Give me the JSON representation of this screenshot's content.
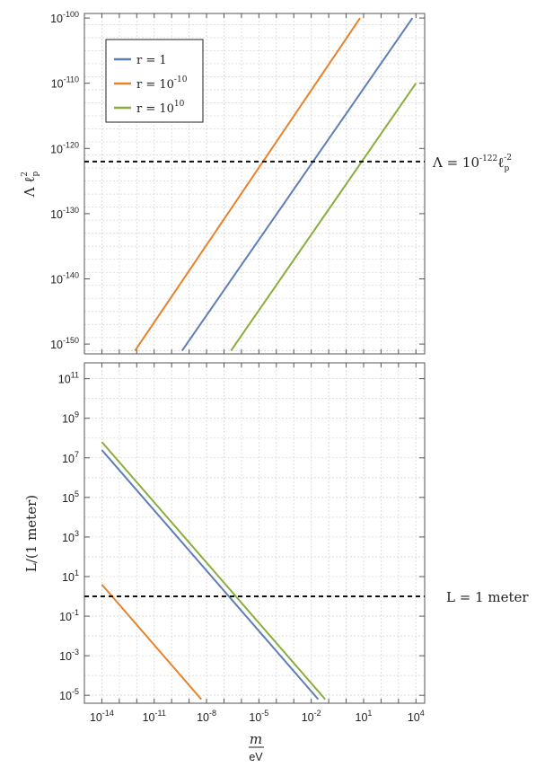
{
  "colors": {
    "r1": "#5e7fb5",
    "r_small": "#e8822a",
    "r_big": "#8aad3c",
    "ref_line": "#111111",
    "grid": "#d6d6d6",
    "frame": "#555555"
  },
  "chart_data": [
    {
      "id": "top",
      "type": "line",
      "ylabel": "Λ ℓ_p^2",
      "x_scale": "log10",
      "y_scale": "log10",
      "xlim_exp": [
        -15,
        4.5
      ],
      "ylim_exp": [
        -151.5,
        -99.3
      ],
      "y_tick_exps": [
        -150,
        -140,
        -130,
        -120,
        -110,
        -100
      ],
      "y_tick_labels": [
        "10^-150",
        "10^-140",
        "10^-130",
        "10^-120",
        "10^-110",
        "10^-100"
      ],
      "legend": {
        "placement": "top-left",
        "entries": [
          {
            "label": "r = 1",
            "color": "#5e7fb5"
          },
          {
            "label": "r = 10^-10",
            "color": "#e8822a"
          },
          {
            "label": "r = 10^10",
            "color": "#8aad3c"
          }
        ]
      },
      "series": [
        {
          "name": "r = 1",
          "color": "#5e7fb5",
          "points_log": [
            [
              -9.4,
              -151
            ],
            [
              3.8,
              -100
            ]
          ]
        },
        {
          "name": "r = 10^-10",
          "color": "#e8822a",
          "points_log": [
            [
              -12.1,
              -151
            ],
            [
              0.8,
              -100
            ]
          ]
        },
        {
          "name": "r = 10^10",
          "color": "#8aad3c",
          "points_log": [
            [
              -6.6,
              -151
            ],
            [
              4.0,
              -110
            ]
          ]
        }
      ],
      "reference_line": {
        "y_exp": -122,
        "label": "Λ = 10^-122 ℓ_p^-2"
      }
    },
    {
      "id": "bottom",
      "type": "line",
      "xlabel": "m / eV",
      "ylabel": "L/(1 meter)",
      "x_scale": "log10",
      "y_scale": "log10",
      "xlim_exp": [
        -15,
        4.5
      ],
      "ylim_exp": [
        -5.4,
        11.8
      ],
      "x_tick_exps": [
        -14,
        -11,
        -8,
        -5,
        -2,
        1,
        4
      ],
      "x_tick_labels": [
        "10^-14",
        "10^-11",
        "10^-8",
        "10^-5",
        "10^-2",
        "10^1",
        "10^4"
      ],
      "y_tick_exps": [
        -5,
        -3,
        -1,
        1,
        3,
        5,
        7,
        9,
        11
      ],
      "y_tick_labels": [
        "10^-5",
        "10^-3",
        "10^-1",
        "10^1",
        "10^3",
        "10^5",
        "10^7",
        "10^9",
        "10^11"
      ],
      "series": [
        {
          "name": "r = 1",
          "color": "#5e7fb5",
          "points_log": [
            [
              -14,
              7.4
            ],
            [
              -1.6,
              -5.2
            ]
          ]
        },
        {
          "name": "r = 10^-10",
          "color": "#e8822a",
          "points_log": [
            [
              -14,
              0.6
            ],
            [
              -8.3,
              -5.2
            ]
          ]
        },
        {
          "name": "r = 10^10",
          "color": "#8aad3c",
          "points_log": [
            [
              -14,
              7.8
            ],
            [
              -1.2,
              -5.2
            ]
          ]
        }
      ],
      "reference_line": {
        "y_exp": 0,
        "label": "L = 1 meter"
      }
    }
  ]
}
